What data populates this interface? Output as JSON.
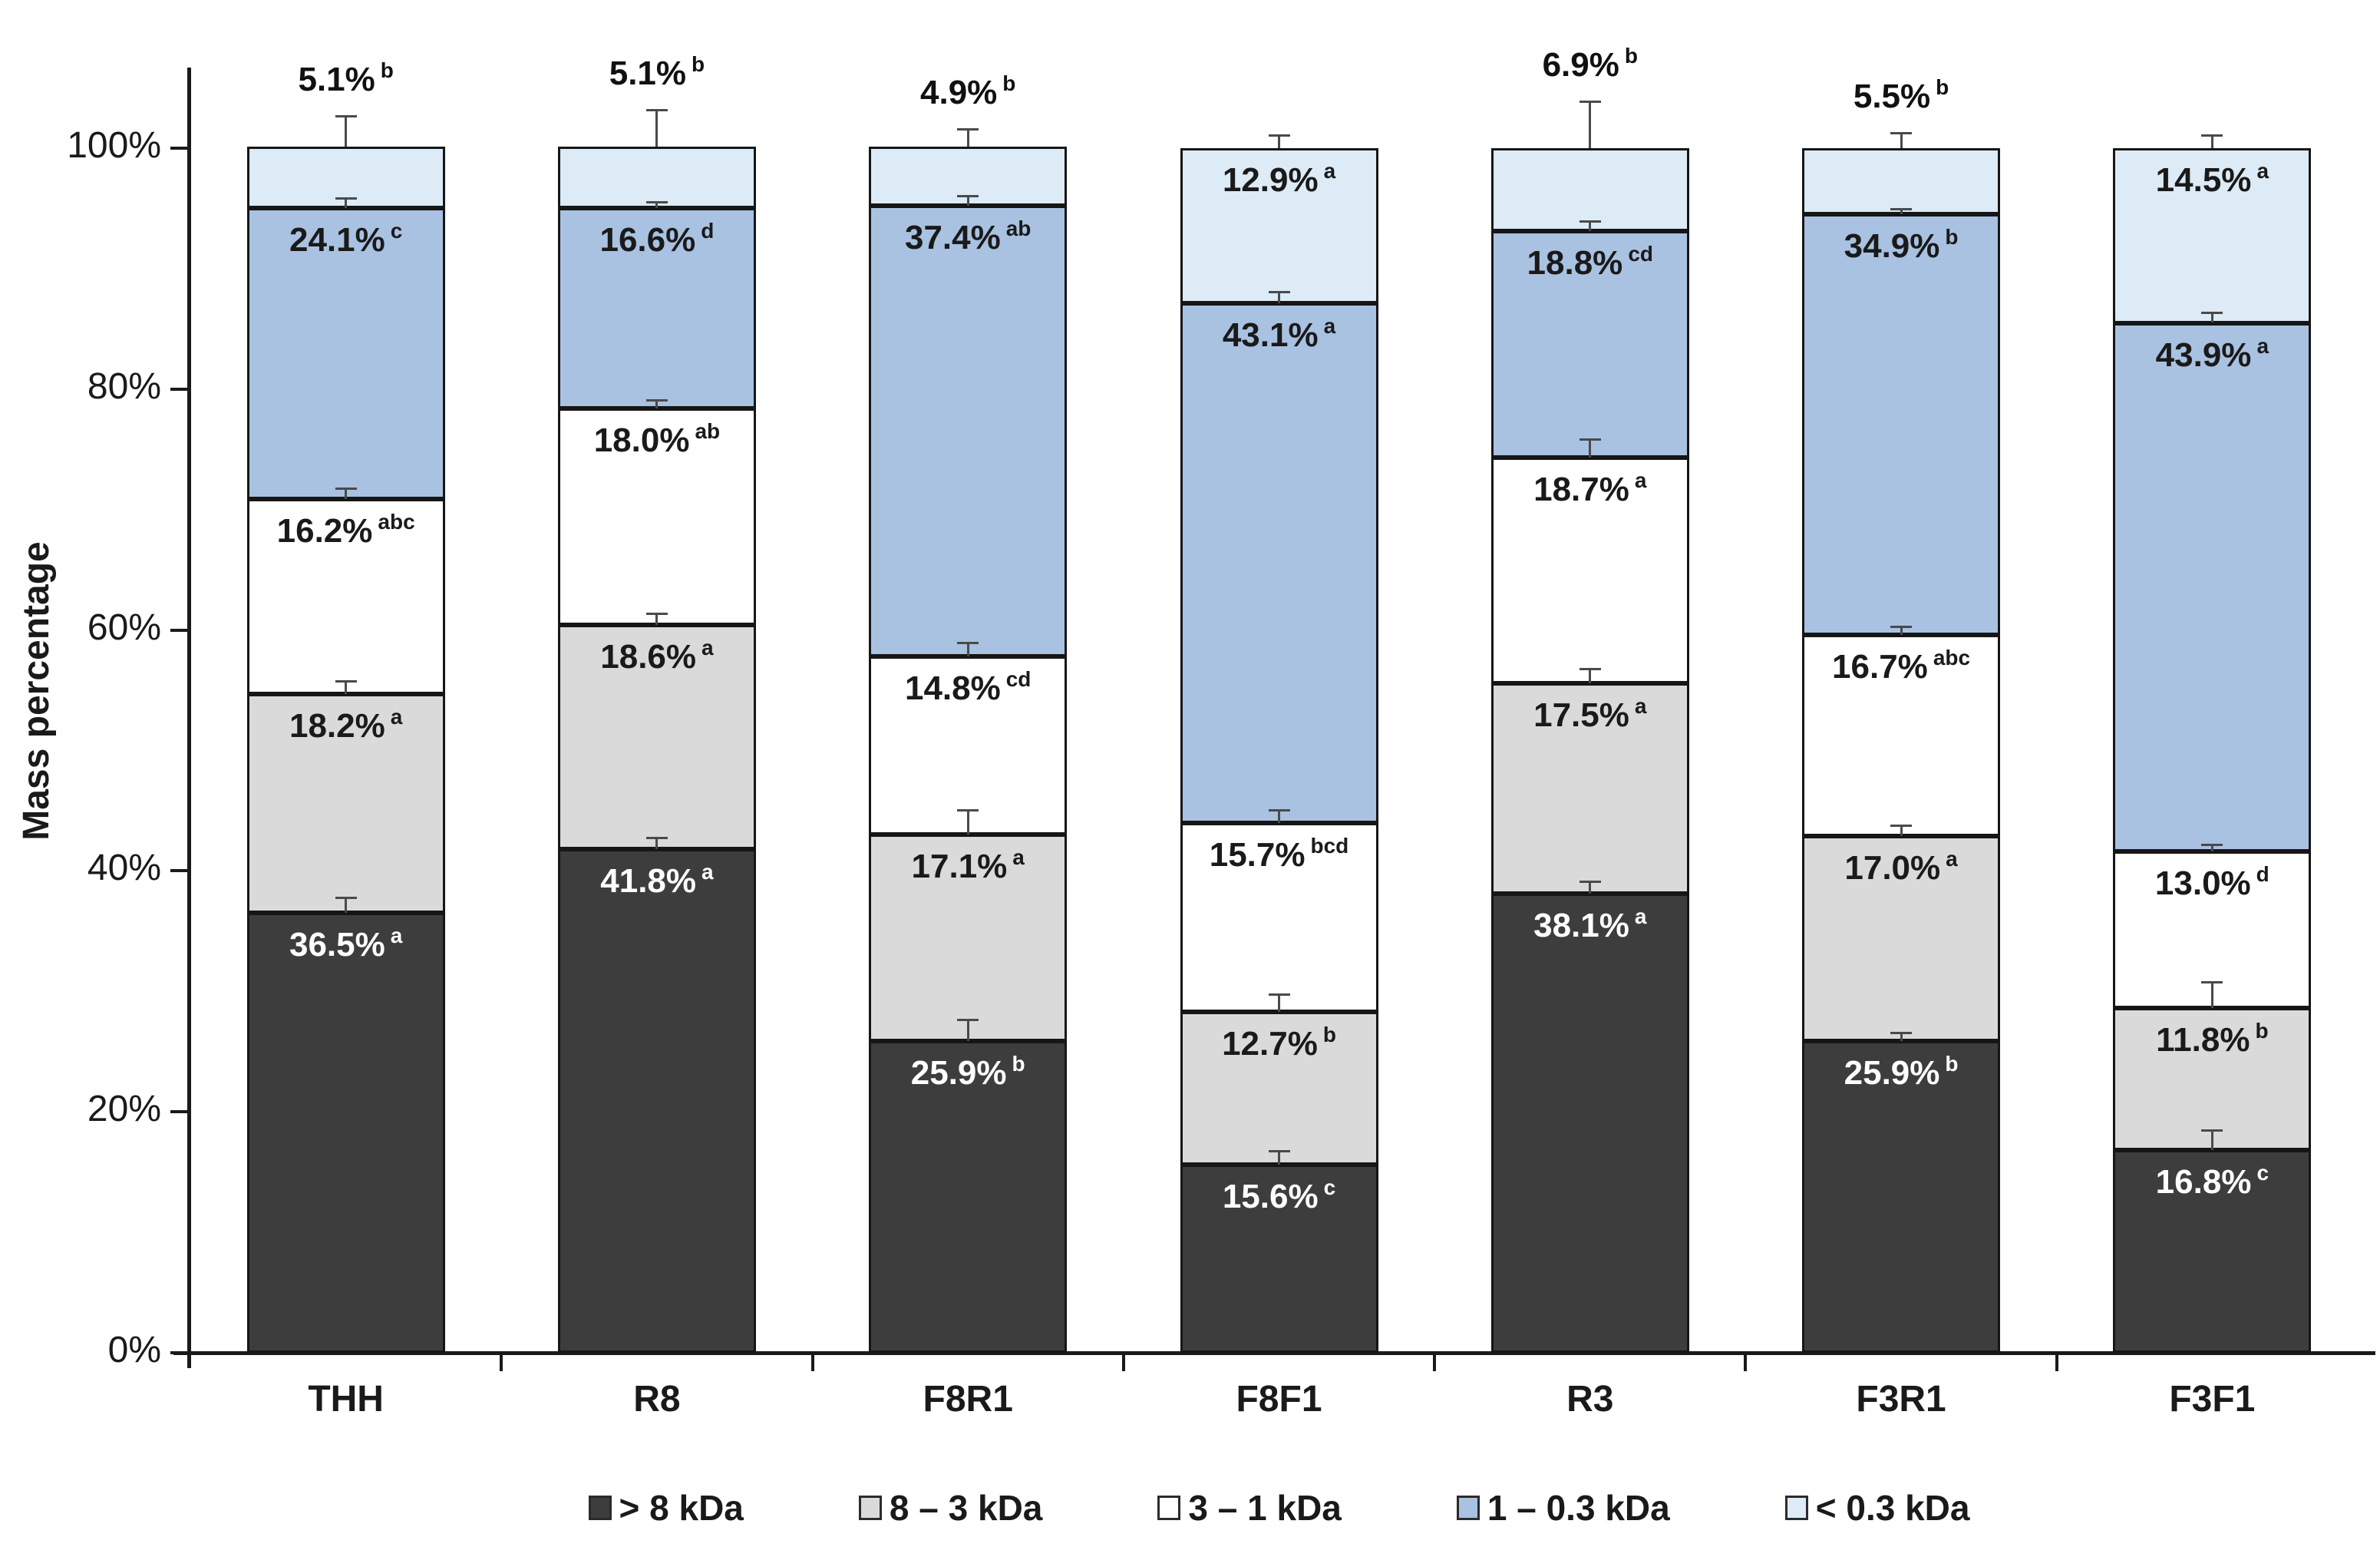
{
  "figure": {
    "ylabel": "Mass percentage",
    "background_color": "#ffffff",
    "axis_color": "#1a1a1a",
    "error_bar_color": "#4a4a4a"
  },
  "chart_data": {
    "type": "bar",
    "subtype": "stacked-100-percent-column",
    "title": "",
    "xlabel": "",
    "ylabel": "Mass percentage",
    "ylim": [
      0,
      100
    ],
    "grid": false,
    "legend_position": "bottom",
    "value_suffix": "%",
    "y_ticks": [
      "0%",
      "20%",
      "40%",
      "60%",
      "80%",
      "100%"
    ],
    "y_tick_values": [
      0,
      20,
      40,
      60,
      80,
      100
    ],
    "categories": [
      "THH",
      "R8",
      "F8R1",
      "F8F1",
      "R3",
      "F3R1",
      "F3F1"
    ],
    "series": [
      {
        "name": "> 8 kDa",
        "color": "#3d3d3d",
        "text_color": "#ffffff",
        "values": [
          36.5,
          41.8,
          25.9,
          15.6,
          38.1,
          25.9,
          16.8
        ],
        "superscripts": [
          "a",
          "a",
          "b",
          "c",
          "a",
          "b",
          "c"
        ],
        "error_up_pct": [
          1.2,
          0.9,
          1.7,
          1.1,
          1.0,
          0.6,
          1.6
        ]
      },
      {
        "name": "8 – 3 kDa",
        "color": "#dadada",
        "text_color": "#1a1a1a",
        "values": [
          18.2,
          18.6,
          17.1,
          12.7,
          17.5,
          17.0,
          11.8
        ],
        "superscripts": [
          "a",
          "a",
          "a",
          "b",
          "a",
          "a",
          "b"
        ],
        "error_up_pct": [
          1.0,
          0.9,
          2.0,
          1.4,
          1.1,
          0.8,
          2.1
        ]
      },
      {
        "name": "3 – 1 kDa",
        "color": "#ffffff",
        "text_color": "#1a1a1a",
        "values": [
          16.2,
          18.0,
          14.8,
          15.7,
          18.7,
          16.7,
          13.0
        ],
        "superscripts": [
          "abc",
          "ab",
          "cd",
          "bcd",
          "a",
          "abc",
          "d"
        ],
        "error_up_pct": [
          0.8,
          0.6,
          1.1,
          1.0,
          1.5,
          0.6,
          0.5
        ]
      },
      {
        "name": "1 –  0.3 kDa",
        "color": "#a9c2e2",
        "text_color": "#1a1a1a",
        "values": [
          24.1,
          16.6,
          37.4,
          43.1,
          18.8,
          34.9,
          43.9
        ],
        "superscripts": [
          "c",
          "d",
          "ab",
          "a",
          "cd",
          "b",
          "a"
        ],
        "error_up_pct": [
          0.8,
          0.5,
          0.8,
          0.9,
          0.8,
          0.4,
          0.8
        ]
      },
      {
        "name": "< 0.3 kDa",
        "color": "#dcebf6",
        "text_color": "#1a1a1a",
        "values": [
          5.1,
          5.1,
          4.9,
          12.9,
          6.9,
          5.5,
          14.5
        ],
        "superscripts": [
          "b",
          "b",
          "b",
          "a",
          "b",
          "b",
          "a"
        ],
        "label_outside": [
          true,
          true,
          true,
          false,
          true,
          true,
          false
        ],
        "error_up_pct": [
          2.5,
          3.0,
          1.4,
          1.0,
          3.8,
          1.2,
          1.0
        ]
      }
    ]
  }
}
